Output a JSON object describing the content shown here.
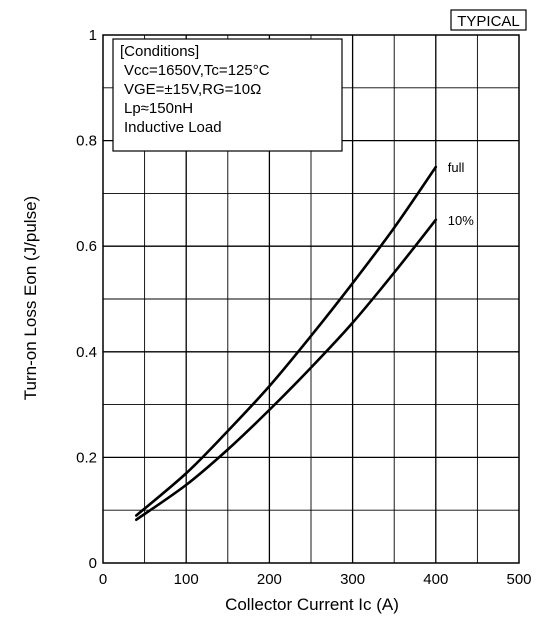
{
  "chart_data": {
    "type": "line",
    "badge": "TYPICAL",
    "xlabel": "Collector Current Ic (A)",
    "ylabel": "Turn-on Loss Eon (J/pulse)",
    "xlim": [
      0,
      500
    ],
    "ylim": [
      0,
      1
    ],
    "xticks": [
      "0",
      "100",
      "200",
      "300",
      "400",
      "500"
    ],
    "yticks": [
      "0",
      "0.2",
      "0.4",
      "0.6",
      "0.8",
      "1"
    ],
    "grid": true,
    "conditions": {
      "header": "[Conditions]",
      "lines": [
        "Vcc=1650V,Tc=125°C",
        "VGE=±15V,RG=10Ω",
        "Lp≈150nH",
        "Inductive Load"
      ]
    },
    "series": [
      {
        "name": "full",
        "x": [
          40,
          100,
          150,
          200,
          250,
          300,
          350,
          400
        ],
        "y": [
          0.09,
          0.17,
          0.25,
          0.335,
          0.43,
          0.53,
          0.635,
          0.75
        ]
      },
      {
        "name": "10%",
        "x": [
          40,
          100,
          150,
          200,
          250,
          300,
          350,
          400
        ],
        "y": [
          0.082,
          0.148,
          0.215,
          0.29,
          0.37,
          0.455,
          0.55,
          0.65
        ]
      }
    ]
  }
}
